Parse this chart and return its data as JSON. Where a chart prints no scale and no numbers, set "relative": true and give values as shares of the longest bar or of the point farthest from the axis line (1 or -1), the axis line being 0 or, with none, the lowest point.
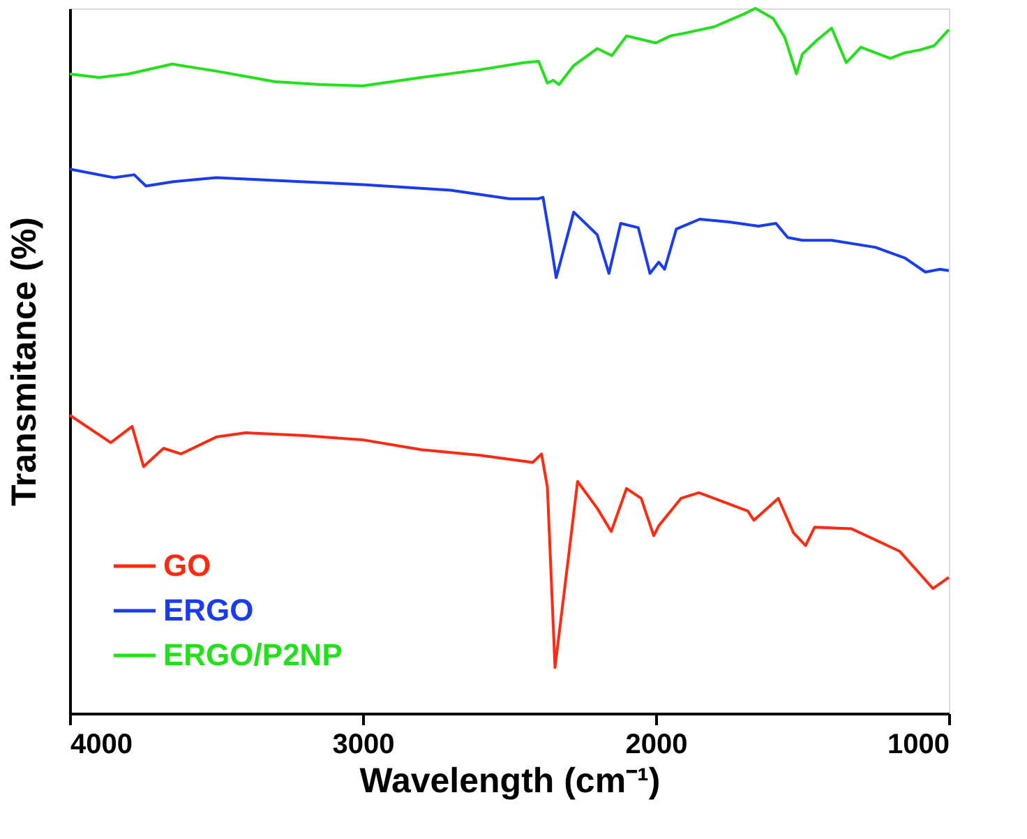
{
  "chart_data": {
    "type": "line",
    "xlabel": "Wavelength (cm⁻¹)",
    "ylabel": "Transmitance (%)",
    "relative": true,
    "xlim": [
      4000,
      1000
    ],
    "xticks": [
      4000,
      3000,
      2000,
      1000
    ],
    "grid": false,
    "legend": "bottom left",
    "marker": "none",
    "line_style": "solid",
    "series": [
      {
        "name": "GO",
        "color": "#ff2a10",
        "x": [
          4000,
          3860,
          3787,
          3748,
          3680,
          3620,
          3500,
          3400,
          3200,
          3000,
          2800,
          2600,
          2420,
          2390,
          2370,
          2344,
          2300,
          2267,
          2200,
          2152,
          2100,
          2050,
          2007,
          1990,
          1914,
          1853,
          1686,
          1665,
          1582,
          1530,
          1489,
          1458,
          1333,
          1168,
          1054,
          1000
        ],
        "values": [
          0.423,
          0.384,
          0.407,
          0.35,
          0.376,
          0.368,
          0.392,
          0.398,
          0.394,
          0.388,
          0.374,
          0.366,
          0.356,
          0.368,
          0.321,
          0.065,
          0.215,
          0.329,
          0.291,
          0.258,
          0.319,
          0.305,
          0.252,
          0.266,
          0.305,
          0.313,
          0.287,
          0.274,
          0.305,
          0.256,
          0.238,
          0.264,
          0.262,
          0.23,
          0.177,
          0.193
        ]
      },
      {
        "name": "ERGO",
        "color": "#1a3cf0",
        "x": [
          4000,
          3850,
          3780,
          3740,
          3650,
          3500,
          3300,
          3000,
          2700,
          2500,
          2400,
          2385,
          2360,
          2340,
          2280,
          2200,
          2160,
          2120,
          2060,
          2020,
          1990,
          1970,
          1930,
          1850,
          1750,
          1650,
          1590,
          1550,
          1500,
          1400,
          1250,
          1150,
          1080,
          1030,
          1000
        ],
        "values": [
          0.772,
          0.76,
          0.764,
          0.748,
          0.754,
          0.76,
          0.756,
          0.75,
          0.742,
          0.73,
          0.73,
          0.732,
          0.671,
          0.618,
          0.711,
          0.679,
          0.624,
          0.695,
          0.689,
          0.624,
          0.64,
          0.63,
          0.687,
          0.701,
          0.697,
          0.691,
          0.695,
          0.675,
          0.671,
          0.671,
          0.661,
          0.646,
          0.626,
          0.63,
          0.628
        ]
      },
      {
        "name": "ERGO/P2NP",
        "color": "#22e01a",
        "x": [
          4000,
          3900,
          3800,
          3650,
          3500,
          3300,
          3150,
          3000,
          2800,
          2600,
          2450,
          2400,
          2370,
          2350,
          2330,
          2280,
          2200,
          2150,
          2100,
          2000,
          1950,
          1900,
          1800,
          1700,
          1660,
          1600,
          1560,
          1520,
          1500,
          1450,
          1400,
          1350,
          1300,
          1200,
          1150,
          1100,
          1050,
          1000
        ],
        "values": [
          0.907,
          0.902,
          0.907,
          0.921,
          0.911,
          0.896,
          0.892,
          0.89,
          0.902,
          0.913,
          0.923,
          0.925,
          0.894,
          0.898,
          0.892,
          0.919,
          0.943,
          0.933,
          0.961,
          0.951,
          0.961,
          0.965,
          0.974,
          0.992,
          1,
          0.986,
          0.959,
          0.907,
          0.935,
          0.955,
          0.972,
          0.923,
          0.945,
          0.929,
          0.937,
          0.941,
          0.947,
          0.97
        ]
      }
    ]
  }
}
